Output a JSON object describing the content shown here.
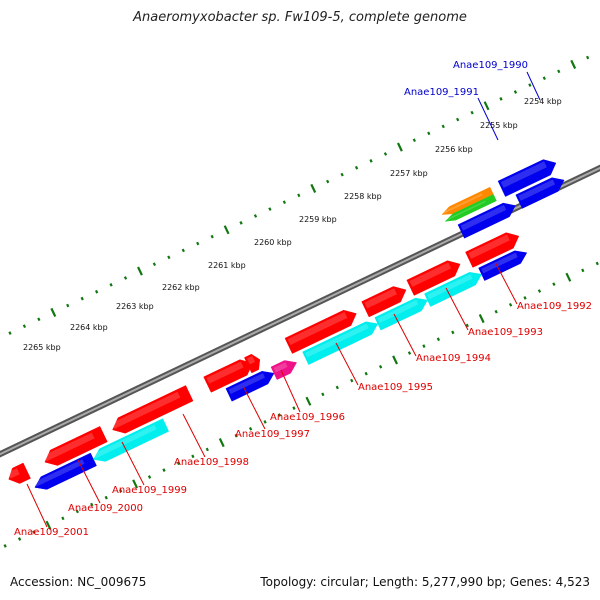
{
  "title": "Anaeromyxobacter sp. Fw109-5, complete genome",
  "accession": "Accession: NC_009675",
  "summary": "Topology: circular; Length: 5,277,990 bp; Genes: 4,523",
  "colors": {
    "red": "#ff0000",
    "blue": "#0000ee",
    "cyan": "#00eeee",
    "magenta": "#ee1188",
    "orange": "#ff8800",
    "green": "#22cc22",
    "steel": "#4477aa",
    "backbone": "#888888",
    "tick": "#117711",
    "label_red": "#dd0000",
    "label_blue": "#0000cc"
  },
  "kbp_labels": [
    "2254 kbp",
    "2255 kbp",
    "2256 kbp",
    "2257 kbp",
    "2258 kbp",
    "2259 kbp",
    "2260 kbp",
    "2261 kbp",
    "2262 kbp",
    "2263 kbp",
    "2264 kbp",
    "2265 kbp"
  ],
  "gene_labels": [
    {
      "id": "1990",
      "text": "Anae109_1990",
      "color": "blue"
    },
    {
      "id": "1991",
      "text": "Anae109_1991",
      "color": "blue"
    },
    {
      "id": "1992",
      "text": "Anae109_1992",
      "color": "red"
    },
    {
      "id": "1993",
      "text": "Anae109_1993",
      "color": "red"
    },
    {
      "id": "1994",
      "text": "Anae109_1994",
      "color": "red"
    },
    {
      "id": "1995",
      "text": "Anae109_1995",
      "color": "red"
    },
    {
      "id": "1996",
      "text": "Anae109_1996",
      "color": "red"
    },
    {
      "id": "1997",
      "text": "Anae109_1997",
      "color": "red"
    },
    {
      "id": "1998",
      "text": "Anae109_1998",
      "color": "red"
    },
    {
      "id": "1999",
      "text": "Anae109_1999",
      "color": "red"
    },
    {
      "id": "2000",
      "text": "Anae109_2000",
      "color": "red"
    },
    {
      "id": "2001",
      "text": "Anae109_2001",
      "color": "red"
    }
  ]
}
